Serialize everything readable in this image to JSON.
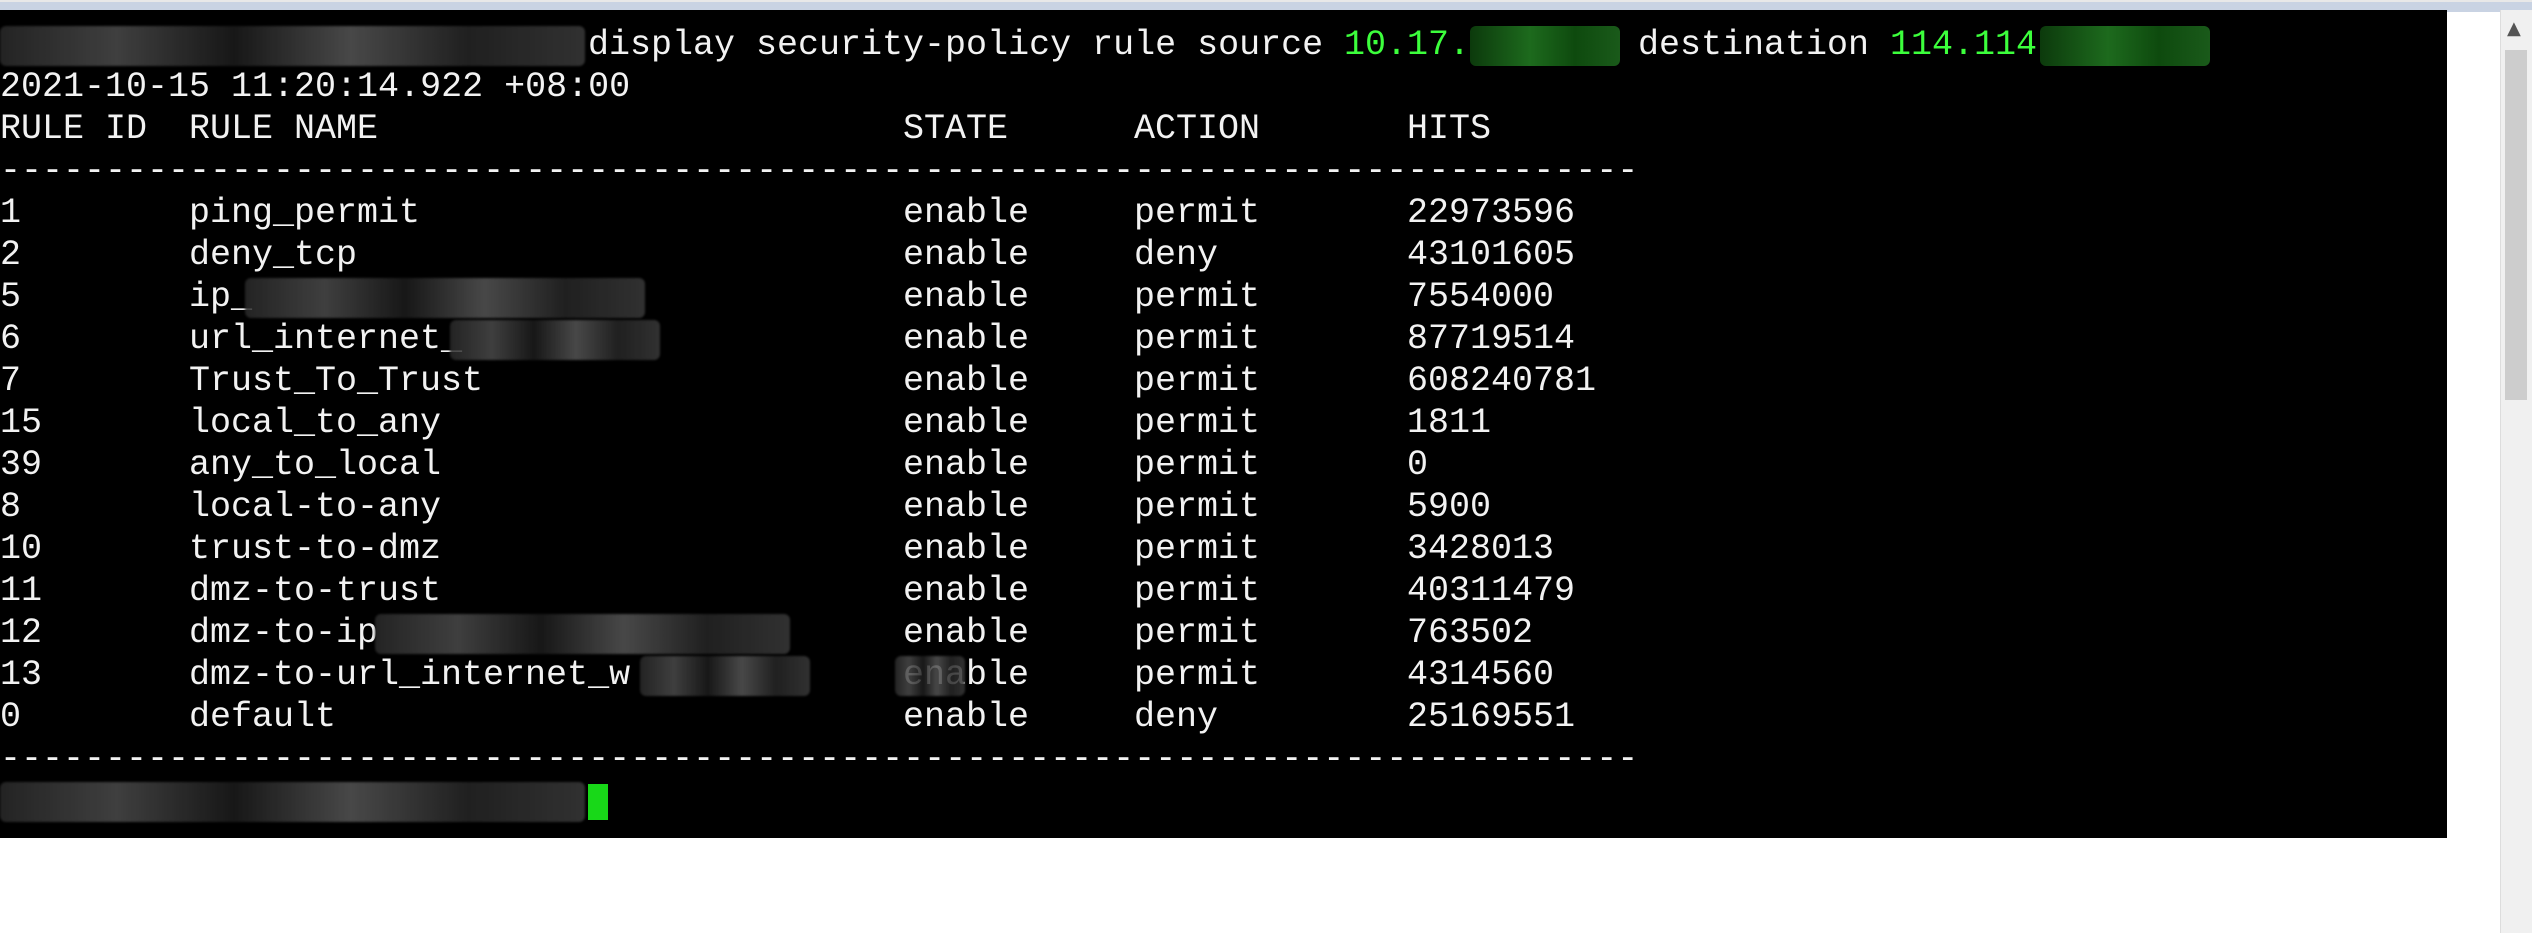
{
  "terminal": {
    "command": "display security-policy rule source ",
    "source_ip_prefix": "10.17.",
    "destination_label": " destination ",
    "destination_ip_prefix": "114.114",
    "timestamp": "2021-10-15 11:20:14.922 +08:00",
    "headers": {
      "rule_id": "RULE ID",
      "rule_name": "RULE NAME",
      "state": "STATE",
      "action": "ACTION",
      "hits": "HITS"
    },
    "separator": "------------------------------------------------------------------------------",
    "rows": [
      {
        "id": "1",
        "name": "ping_permit",
        "state": "enable",
        "action": "permit",
        "hits": "22973596"
      },
      {
        "id": "2",
        "name": "deny_tcp",
        "state": "enable",
        "action": "deny",
        "hits": "43101605"
      },
      {
        "id": "5",
        "name": "ip_",
        "state": "enable",
        "action": "permit",
        "hits": "7554000"
      },
      {
        "id": "6",
        "name": "url_internet_",
        "state": "enable",
        "action": "permit",
        "hits": "87719514"
      },
      {
        "id": "7",
        "name": "Trust_To_Trust",
        "state": "enable",
        "action": "permit",
        "hits": "608240781"
      },
      {
        "id": "15",
        "name": "local_to_any",
        "state": "enable",
        "action": "permit",
        "hits": "1811"
      },
      {
        "id": "39",
        "name": "any_to_local",
        "state": "enable",
        "action": "permit",
        "hits": "0"
      },
      {
        "id": "8",
        "name": "local-to-any",
        "state": "enable",
        "action": "permit",
        "hits": "5900"
      },
      {
        "id": "10",
        "name": "trust-to-dmz",
        "state": "enable",
        "action": "permit",
        "hits": "3428013"
      },
      {
        "id": "11",
        "name": "dmz-to-trust",
        "state": "enable",
        "action": "permit",
        "hits": "40311479"
      },
      {
        "id": "12",
        "name": "dmz-to-ip",
        "state": "enable",
        "action": "permit",
        "hits": "763502"
      },
      {
        "id": "13",
        "name": "dmz-to-url_internet_w",
        "state": "enable",
        "action": "permit",
        "hits": "4314560"
      },
      {
        "id": "0",
        "name": "default",
        "state": "enable",
        "action": "deny",
        "hits": "25169551"
      }
    ],
    "colors": {
      "background": "#000000",
      "text": "#f2f2f2",
      "ip_highlight": "#3cff3c",
      "cursor": "#18d818"
    }
  }
}
